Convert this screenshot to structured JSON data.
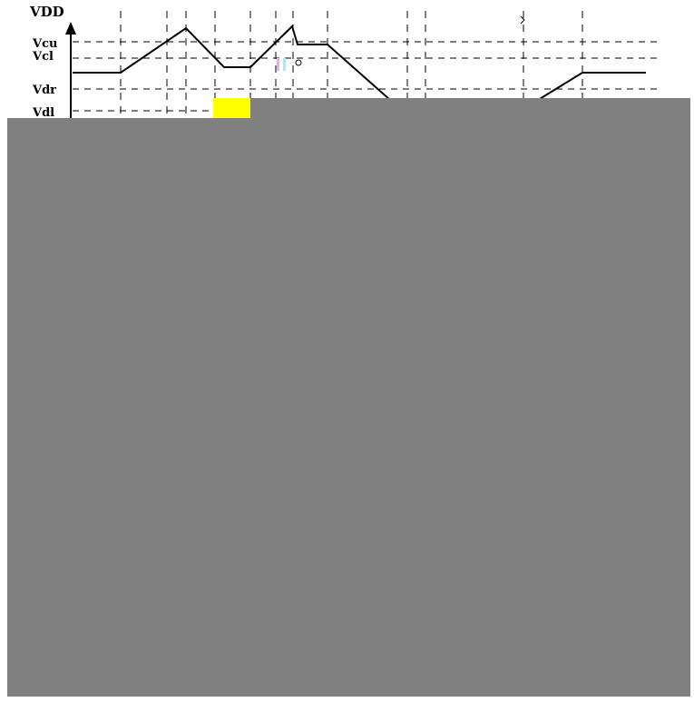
{
  "labels": {
    "vdd": "VDD",
    "vcu": "Vcu",
    "vcl": "Vcl",
    "vdr": "Vdr",
    "vdl": "Vdl"
  },
  "colors": {
    "occluder": "#808080",
    "marker": "#ffff00",
    "line": "#000000"
  }
}
